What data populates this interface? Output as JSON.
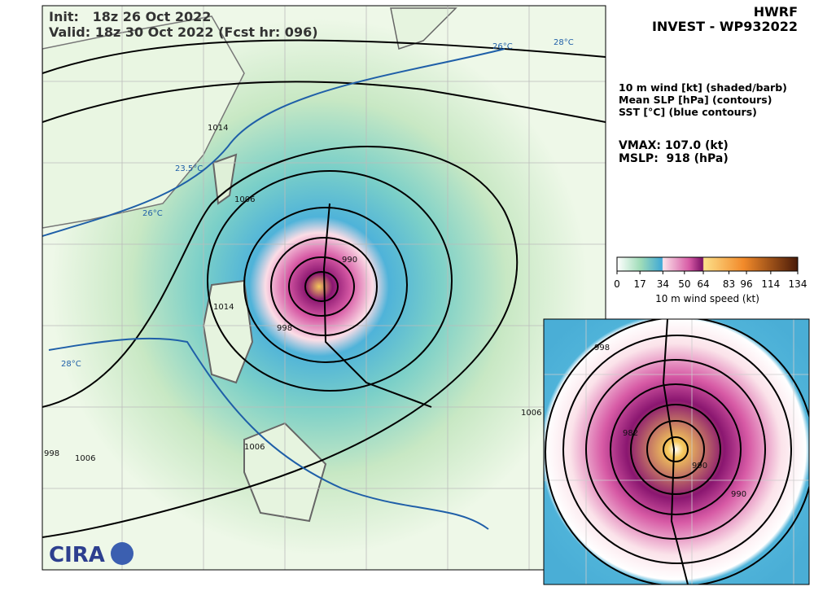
{
  "header": {
    "model": "HWRF",
    "storm": "INVEST - WP932022"
  },
  "map": {
    "init": "Init:   18z 26 Oct 2022",
    "valid": "Valid: 18z 30 Oct 2022 (Fcst hr: 096)",
    "contour_labels": [
      "1014",
      "1006",
      "998",
      "990",
      "1006",
      "1006",
      "998",
      "1014",
      "1006"
    ],
    "sst_labels": [
      "26°C",
      "28°C",
      "23.5°C",
      "26°C",
      "28°C"
    ],
    "logo": "CIRA"
  },
  "legend": {
    "lines": [
      "10 m wind [kt] (shaded/barb)",
      "Mean SLP [hPa] (contours)",
      "SST [°C] (blue contours)"
    ],
    "vmax": "VMAX: 107.0 (kt)",
    "mslp": "MSLP:  918 (hPa)"
  },
  "colorbar": {
    "ticks": [
      0,
      17,
      34,
      50,
      64,
      83,
      96,
      114,
      134
    ],
    "label": "10 m wind speed (kt)"
  },
  "inset": {
    "contour_labels": [
      "998",
      "982",
      "990",
      "990"
    ]
  }
}
